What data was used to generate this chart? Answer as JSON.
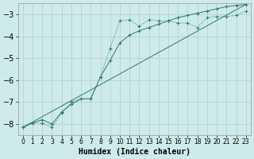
{
  "xlabel": "Humidex (Indice chaleur)",
  "background_color": "#ceeaea",
  "grid_color": "#b8d4d4",
  "line_color": "#2d7a6e",
  "xlim": [
    -0.5,
    23.5
  ],
  "ylim": [
    -8.5,
    -2.5
  ],
  "yticks": [
    -8,
    -7,
    -6,
    -5,
    -4,
    -3
  ],
  "xticks": [
    0,
    1,
    2,
    3,
    4,
    5,
    6,
    7,
    8,
    9,
    10,
    11,
    12,
    13,
    14,
    15,
    16,
    17,
    18,
    19,
    20,
    21,
    22,
    23
  ],
  "curve1_x": [
    0,
    1,
    2,
    3,
    4,
    5,
    6,
    7,
    8,
    9,
    10,
    11,
    12,
    13,
    14,
    15,
    16,
    17,
    18,
    19,
    20,
    21,
    22,
    23
  ],
  "curve1_y": [
    -8.15,
    -7.95,
    -7.95,
    -8.15,
    -7.5,
    -7.0,
    -6.85,
    -6.85,
    -5.85,
    -4.55,
    -3.3,
    -3.25,
    -3.55,
    -3.25,
    -3.3,
    -3.3,
    -3.4,
    -3.4,
    -3.6,
    -3.15,
    -3.1,
    -3.1,
    -3.05,
    -2.85
  ],
  "curve2_x": [
    0,
    1,
    2,
    3,
    4,
    5,
    6,
    7,
    8,
    9,
    10,
    11,
    12,
    13,
    14,
    15,
    16,
    17,
    18,
    19,
    20,
    21,
    22,
    23
  ],
  "curve2_y": [
    -8.15,
    -7.95,
    -7.8,
    -8.0,
    -7.45,
    -7.1,
    -6.85,
    -6.85,
    -5.85,
    -5.1,
    -4.3,
    -3.95,
    -3.75,
    -3.6,
    -3.45,
    -3.3,
    -3.15,
    -3.05,
    -2.95,
    -2.85,
    -2.75,
    -2.65,
    -2.6,
    -2.55
  ],
  "line3_x": [
    0,
    23
  ],
  "line3_y": [
    -8.15,
    -2.55
  ]
}
